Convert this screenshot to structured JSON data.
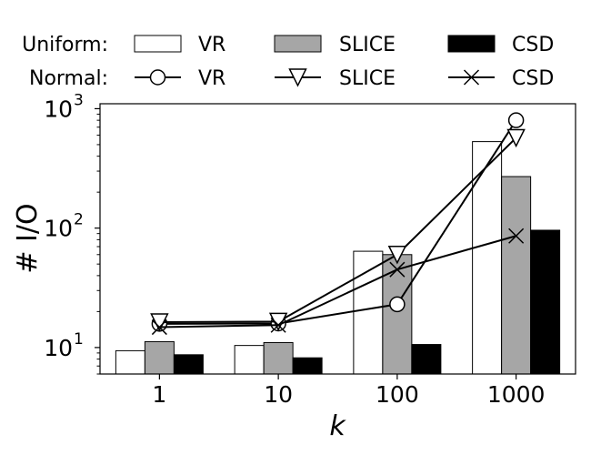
{
  "chart_data": {
    "type": "bar",
    "xlabel": "k",
    "ylabel": "# I/O",
    "yscale": "log",
    "ylim": [
      6,
      1100
    ],
    "categories": [
      "1",
      "10",
      "100",
      "1000"
    ],
    "y_ticks": [
      {
        "value": 10,
        "base": "10",
        "exp": "1"
      },
      {
        "value": 100,
        "base": "10",
        "exp": "2"
      },
      {
        "value": 1000,
        "base": "10",
        "exp": "3"
      }
    ],
    "legend": {
      "position": "top",
      "row_labels": [
        "Uniform:",
        "Normal:"
      ]
    },
    "bar_series": [
      {
        "name": "VR",
        "group": "Uniform",
        "color": "#ffffff",
        "values": [
          9.4,
          10.4,
          64,
          530
        ]
      },
      {
        "name": "SLICE",
        "group": "Uniform",
        "color": "#a6a6a6",
        "values": [
          11.2,
          11.0,
          60,
          270
        ]
      },
      {
        "name": "CSD",
        "group": "Uniform",
        "color": "#000000",
        "values": [
          8.7,
          8.2,
          10.6,
          96
        ]
      }
    ],
    "line_series": [
      {
        "name": "VR",
        "group": "Normal",
        "marker": "circle",
        "values": [
          15.8,
          15.9,
          23,
          800
        ]
      },
      {
        "name": "SLICE",
        "group": "Normal",
        "marker": "triangle-down",
        "values": [
          16.3,
          16.5,
          60,
          570
        ]
      },
      {
        "name": "CSD",
        "group": "Normal",
        "marker": "x",
        "values": [
          14.8,
          15.4,
          45,
          86
        ]
      }
    ]
  }
}
